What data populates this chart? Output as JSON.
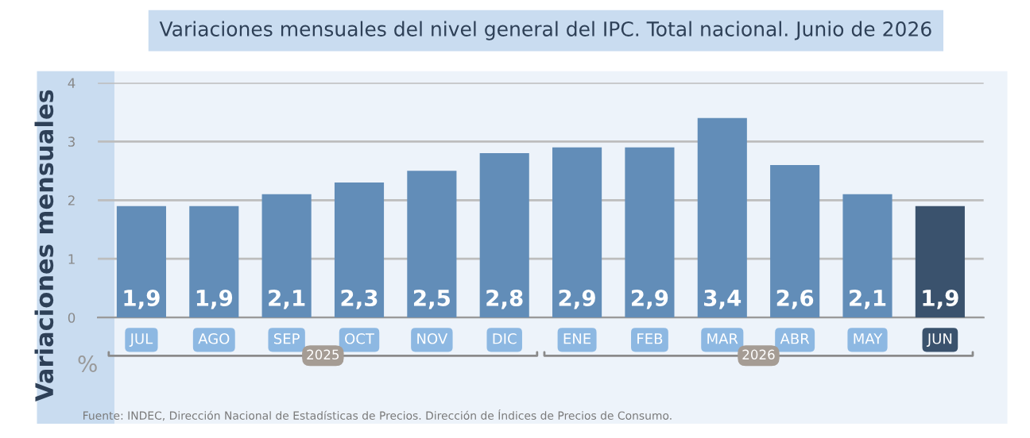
{
  "chart_data": {
    "type": "bar",
    "title": "Variaciones mensuales del nivel general del IPC. Total nacional. Junio de 2026",
    "ylabel": "Variaciones mensuales",
    "categories": [
      "JUL",
      "AGO",
      "SEP",
      "OCT",
      "NOV",
      "DIC",
      "ENE",
      "FEB",
      "MAR",
      "ABR",
      "MAY",
      "JUN"
    ],
    "values": [
      1.9,
      1.9,
      2.1,
      2.3,
      2.5,
      2.8,
      2.9,
      2.9,
      3.4,
      2.6,
      2.1,
      1.9
    ],
    "value_labels": [
      "1,9",
      "1,9",
      "2,1",
      "2,3",
      "2,5",
      "2,8",
      "2,9",
      "2,9",
      "3,4",
      "2,6",
      "2,1",
      "1,9"
    ],
    "colors": [
      "#628db8",
      "#628db8",
      "#628db8",
      "#628db8",
      "#628db8",
      "#628db8",
      "#628db8",
      "#628db8",
      "#628db8",
      "#628db8",
      "#628db8",
      "#3a526d"
    ],
    "ylim": [
      0,
      4
    ],
    "yticks": [
      0,
      1,
      2,
      3,
      4
    ],
    "grid": "y",
    "annotations": [
      "%",
      "2025",
      "2026",
      "Fuente: INDEC, Dirección Nacional de Estadísticas de Precios. Dirección de Índices de Precios de Consumo."
    ]
  }
}
